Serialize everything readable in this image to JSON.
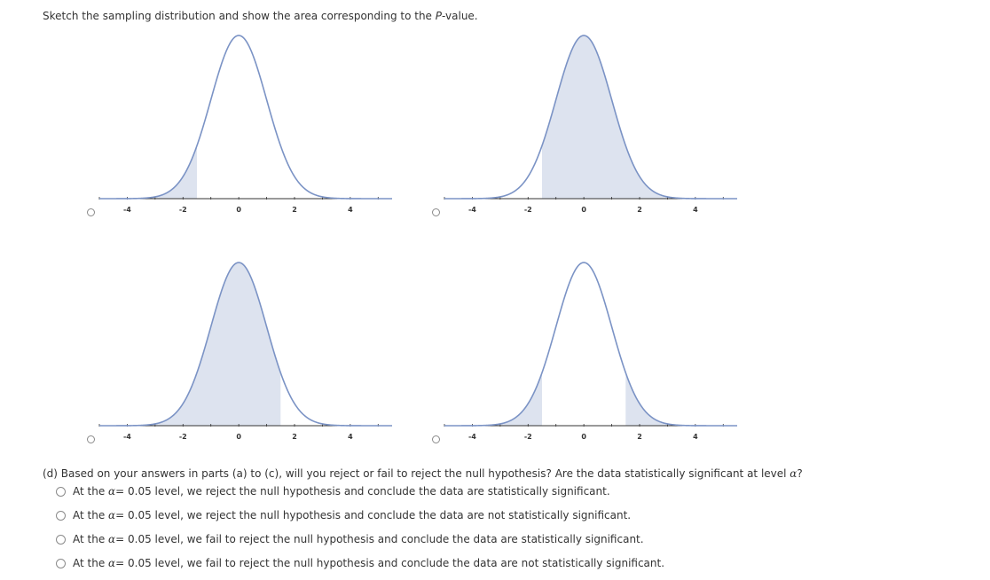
{
  "instruction": {
    "prefix": "Sketch the sampling distribution and show the area corresponding to the ",
    "pvar": "P",
    "suffix": "-value."
  },
  "chart_data": [
    {
      "type": "area",
      "x_ticks": [
        -4,
        -2,
        0,
        2,
        4
      ],
      "xlim": [
        -5,
        5.5
      ],
      "shaded": [
        [
          -5,
          -1.5
        ]
      ]
    },
    {
      "type": "area",
      "x_ticks": [
        -4,
        -2,
        0,
        2,
        4
      ],
      "xlim": [
        -5,
        5.5
      ],
      "shaded": [
        [
          -1.5,
          5.5
        ]
      ]
    },
    {
      "type": "area",
      "x_ticks": [
        -4,
        -2,
        0,
        2,
        4
      ],
      "xlim": [
        -5,
        5.5
      ],
      "shaded": [
        [
          -5,
          1.5
        ]
      ]
    },
    {
      "type": "area",
      "x_ticks": [
        -4,
        -2,
        0,
        2,
        4
      ],
      "xlim": [
        -5,
        5.5
      ],
      "shaded": [
        [
          -5,
          -1.5
        ],
        [
          1.5,
          5.5
        ]
      ]
    }
  ],
  "question": {
    "text_before": "(d) Based on your answers in parts (a) to (c), will you reject or fail to reject the null hypothesis? Are the data statistically significant at level ",
    "alpha": "α",
    "text_after": "?"
  },
  "options": [
    {
      "pre": "At the ",
      "alpha": "α",
      "post": " = 0.05 level, we reject the null hypothesis and conclude the data are statistically significant."
    },
    {
      "pre": "At the ",
      "alpha": "α",
      "post": " = 0.05 level, we reject the null hypothesis and conclude the data are not statistically significant."
    },
    {
      "pre": "At the ",
      "alpha": "α",
      "post": " = 0.05 level, we fail to reject the null hypothesis and conclude the data are statistically significant."
    },
    {
      "pre": "At the ",
      "alpha": "α",
      "post": " = 0.05 level, we fail to reject the null hypothesis and conclude the data are not statistically significant."
    }
  ],
  "colors": {
    "curve": "#7b93c5",
    "fill": "#dde3ef",
    "axis": "#333333"
  }
}
